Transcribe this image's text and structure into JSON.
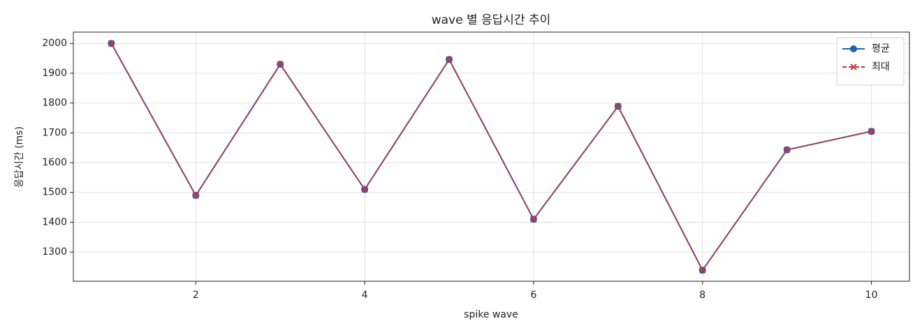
{
  "chart_data": {
    "type": "line",
    "title": "wave 별 응답시간 추이",
    "xlabel": "spike wave",
    "ylabel": "응답시간 (ms)",
    "x": [
      1,
      2,
      3,
      4,
      5,
      6,
      7,
      8,
      9,
      10
    ],
    "series": [
      {
        "name": "평균",
        "color": "#1f63b8",
        "marker": "circle",
        "linestyle": "solid",
        "values": [
          2000,
          1490,
          1930,
          1510,
          1946,
          1410,
          1789,
          1239,
          1643,
          1705
        ]
      },
      {
        "name": "최대",
        "color": "#c8363a",
        "marker": "x",
        "linestyle": "dashed",
        "values": [
          2000,
          1490,
          1930,
          1510,
          1946,
          1410,
          1789,
          1239,
          1643,
          1705
        ]
      }
    ],
    "xlim": [
      0.55,
      10.45
    ],
    "xticks": [
      2,
      4,
      6,
      8,
      10
    ],
    "ylim": [
      1202,
      2038
    ],
    "yticks": [
      1300,
      1400,
      1500,
      1600,
      1700,
      1800,
      1900,
      2000
    ],
    "grid": true,
    "legend": "upper right"
  }
}
